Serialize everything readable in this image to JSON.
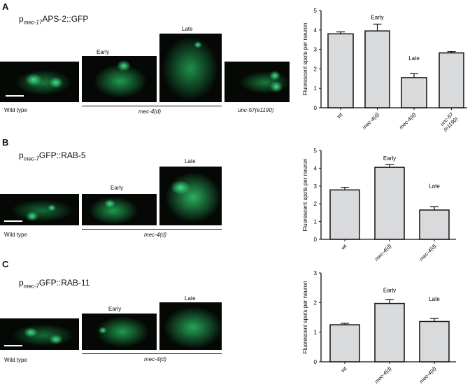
{
  "panels": [
    {
      "letter": "A",
      "title_prefix": "p",
      "title_sub": "mec-17",
      "title_rest": "APS-2::GFP",
      "stage_early": "Early",
      "stage_late": "Late",
      "label_wt": "Wild type",
      "label_mutant": "mec-4(d)",
      "label_extra": "unc-57(e1190)"
    },
    {
      "letter": "B",
      "title_prefix": "p",
      "title_sub": "mec-7",
      "title_rest": "GFP::RAB-5",
      "stage_early": "Early",
      "stage_late": "Late",
      "label_wt": "Wild type",
      "label_mutant": "mec-4(d)"
    },
    {
      "letter": "C",
      "title_prefix": "p",
      "title_sub": "mec-7",
      "title_rest": "GFP::RAB-11",
      "stage_early": "Early",
      "stage_late": "Late",
      "label_wt": "Wild type",
      "label_mutant": "mec-4(d)"
    }
  ],
  "colors": {
    "bar_fill": "#d9dadc",
    "bar_stroke": "#111111",
    "micrograph_green": "#22c36a"
  },
  "chart_data": [
    {
      "type": "bar",
      "ylabel": "Fluorescent spots per neuron",
      "ylim": [
        0,
        5
      ],
      "yticks": [
        0,
        1,
        2,
        3,
        4,
        5
      ],
      "categories": [
        "wt",
        "mec-4(d)",
        "mec-4(d)",
        "unc-57 (e1190)"
      ],
      "values": [
        3.8,
        3.95,
        1.55,
        2.82
      ],
      "errors": [
        0.1,
        0.35,
        0.2,
        0.07
      ],
      "annotations": [
        {
          "text": "Early",
          "category_index": 1
        },
        {
          "text": "Late",
          "category_index": 2
        }
      ]
    },
    {
      "type": "bar",
      "ylabel": "Fluorescent spots per neuron",
      "ylim": [
        0,
        5
      ],
      "yticks": [
        0,
        1,
        2,
        3,
        4,
        5
      ],
      "categories": [
        "wt",
        "mec-4(d)",
        "mec-4(d)"
      ],
      "values": [
        2.78,
        4.05,
        1.65
      ],
      "errors": [
        0.15,
        0.15,
        0.18
      ],
      "annotations": [
        {
          "text": "Early",
          "category_index": 1
        },
        {
          "text": "Late",
          "category_index": 2
        }
      ]
    },
    {
      "type": "bar",
      "ylabel": "Fluorescent spots per neuron",
      "ylim": [
        0,
        3
      ],
      "yticks": [
        0,
        1,
        2,
        3
      ],
      "categories": [
        "wt",
        "mec-4(d)",
        "mec-4(d)"
      ],
      "values": [
        1.25,
        1.97,
        1.36
      ],
      "errors": [
        0.05,
        0.13,
        0.1
      ],
      "annotations": [
        {
          "text": "Early",
          "category_index": 1
        },
        {
          "text": "Late",
          "category_index": 2
        }
      ]
    }
  ]
}
